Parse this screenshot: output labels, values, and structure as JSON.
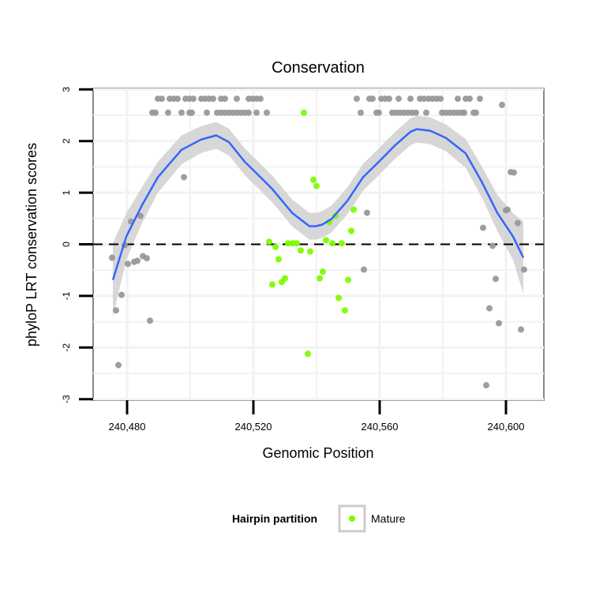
{
  "chart_data": {
    "type": "scatter",
    "title": "Conservation",
    "xlabel": "Genomic Position",
    "ylabel": "phyloP LRT conservation scores",
    "xlim": [
      240469.25,
      240612
    ],
    "ylim": [
      -3.02,
      3.02
    ],
    "x_ticks": [
      240480,
      240520,
      240560,
      240600
    ],
    "x_tick_labels": [
      "240,480",
      "240,520",
      "240,560",
      "240,600"
    ],
    "y_ticks": [
      -3,
      -2,
      -1,
      0,
      1,
      2,
      3
    ],
    "y_tick_labels": [
      "-3",
      "-2",
      "-1",
      "0",
      "1",
      "2",
      "3"
    ],
    "grid": true,
    "reference_line": {
      "y": 0,
      "style": "dashed",
      "color": "#000000"
    },
    "legend": {
      "title": "Hairpin partition",
      "placement": "bottom",
      "entries": [
        {
          "label": "Mature",
          "color": "#7CFC00"
        }
      ]
    },
    "colors": {
      "other": "#999999",
      "mature": "#7CFC00",
      "smooth": "#3366FF",
      "ci_band": "#D3D3D3"
    },
    "series": [
      {
        "name": "Other",
        "color": "#999999",
        "points": [
          [
            240475.25,
            -0.26
          ],
          [
            240476.5,
            -1.28
          ],
          [
            240477.25,
            -2.34
          ],
          [
            240478.25,
            -0.98
          ],
          [
            240479.25,
            -0.02
          ],
          [
            240480.25,
            -0.38
          ],
          [
            240481.25,
            0.44
          ],
          [
            240482.25,
            -0.34
          ],
          [
            240483.25,
            -0.32
          ],
          [
            240484.25,
            0.55
          ],
          [
            240485,
            -0.23
          ],
          [
            240486.25,
            -0.27
          ],
          [
            240487.25,
            -1.48
          ],
          [
            240498,
            1.3
          ],
          [
            240555,
            -0.49
          ],
          [
            240556,
            0.61
          ],
          [
            240592.75,
            0.32
          ],
          [
            240595.75,
            -0.03
          ],
          [
            240596.75,
            -0.67
          ],
          [
            240594.75,
            -1.24
          ],
          [
            240597.75,
            -1.53
          ],
          [
            240593.75,
            -2.73
          ],
          [
            240598.75,
            2.7
          ],
          [
            240601.5,
            1.4
          ],
          [
            240602.5,
            1.39
          ],
          [
            240600,
            0.66
          ],
          [
            240600.5,
            0.67
          ],
          [
            240603.75,
            0.41
          ],
          [
            240605.75,
            -0.49
          ],
          [
            240604.75,
            -1.65
          ],
          [
            240489.75,
            2.82
          ],
          [
            240491,
            2.82
          ],
          [
            240493.5,
            2.82
          ],
          [
            240494.75,
            2.82
          ],
          [
            240496,
            2.82
          ],
          [
            240498.5,
            2.82
          ],
          [
            240499.75,
            2.82
          ],
          [
            240501,
            2.82
          ],
          [
            240503.5,
            2.82
          ],
          [
            240504.75,
            2.82
          ],
          [
            240506,
            2.82
          ],
          [
            240507.25,
            2.82
          ],
          [
            240509.75,
            2.82
          ],
          [
            240511,
            2.82
          ],
          [
            240514.75,
            2.82
          ],
          [
            240518.5,
            2.82
          ],
          [
            240519.75,
            2.82
          ],
          [
            240521,
            2.82
          ],
          [
            240522.25,
            2.82
          ],
          [
            240552.75,
            2.82
          ],
          [
            240556.75,
            2.82
          ],
          [
            240557.75,
            2.82
          ],
          [
            240560.5,
            2.82
          ],
          [
            240561.75,
            2.82
          ],
          [
            240563,
            2.82
          ],
          [
            240566,
            2.82
          ],
          [
            240569.75,
            2.82
          ],
          [
            240572.75,
            2.82
          ],
          [
            240574,
            2.82
          ],
          [
            240575.5,
            2.82
          ],
          [
            240576.75,
            2.82
          ],
          [
            240578,
            2.82
          ],
          [
            240579.25,
            2.82
          ],
          [
            240584.75,
            2.82
          ],
          [
            240587.25,
            2.82
          ],
          [
            240588.5,
            2.82
          ],
          [
            240591.75,
            2.82
          ],
          [
            240488,
            2.55
          ],
          [
            240489,
            2.55
          ],
          [
            240493,
            2.55
          ],
          [
            240497.25,
            2.55
          ],
          [
            240499.75,
            2.55
          ],
          [
            240500.5,
            2.55
          ],
          [
            240505.25,
            2.55
          ],
          [
            240508.5,
            2.55
          ],
          [
            240509.75,
            2.55
          ],
          [
            240511,
            2.55
          ],
          [
            240512.25,
            2.55
          ],
          [
            240513.5,
            2.55
          ],
          [
            240514.75,
            2.55
          ],
          [
            240516,
            2.55
          ],
          [
            240517.25,
            2.55
          ],
          [
            240518.5,
            2.55
          ],
          [
            240521,
            2.55
          ],
          [
            240524.25,
            2.55
          ],
          [
            240554,
            2.55
          ],
          [
            240559,
            2.55
          ],
          [
            240559.75,
            2.55
          ],
          [
            240564,
            2.55
          ],
          [
            240565.25,
            2.55
          ],
          [
            240566.5,
            2.55
          ],
          [
            240567.75,
            2.55
          ],
          [
            240569,
            2.55
          ],
          [
            240570.25,
            2.55
          ],
          [
            240571.5,
            2.55
          ],
          [
            240574.75,
            2.55
          ],
          [
            240579.75,
            2.55
          ],
          [
            240581,
            2.55
          ],
          [
            240582.25,
            2.55
          ],
          [
            240583.5,
            2.55
          ],
          [
            240584.75,
            2.55
          ],
          [
            240586,
            2.55
          ],
          [
            240586.75,
            2.55
          ],
          [
            240589.75,
            2.55
          ],
          [
            240590.5,
            2.55
          ]
        ]
      },
      {
        "name": "Mature",
        "color": "#7CFC00",
        "points": [
          [
            240525,
            0.05
          ],
          [
            240527,
            -0.05
          ],
          [
            240528,
            -0.29
          ],
          [
            240526,
            -0.78
          ],
          [
            240529,
            -0.73
          ],
          [
            240530,
            -0.66
          ],
          [
            240531,
            0.02
          ],
          [
            240532.5,
            0.02
          ],
          [
            240533.75,
            0.02
          ],
          [
            240535,
            -0.12
          ],
          [
            240538,
            -0.14
          ],
          [
            240536,
            2.55
          ],
          [
            240539,
            1.25
          ],
          [
            240540,
            1.13
          ],
          [
            240537.25,
            -2.12
          ],
          [
            240551.75,
            0.67
          ],
          [
            240546,
            0.55
          ],
          [
            240544,
            0.43
          ],
          [
            240551,
            0.26
          ],
          [
            240543,
            0.08
          ],
          [
            240545,
            0.02
          ],
          [
            240548,
            0.02
          ],
          [
            240542,
            -0.53
          ],
          [
            240541,
            -0.66
          ],
          [
            240550,
            -0.69
          ],
          [
            240547,
            -1.04
          ],
          [
            240549,
            -1.28
          ]
        ]
      }
    ],
    "smooth": {
      "x": [
        240475.5,
        240479.75,
        240484.75,
        240489.75,
        240497.25,
        240503.5,
        240508.25,
        240512.25,
        240517.25,
        240522.25,
        240526,
        240532.25,
        240537.75,
        240539.75,
        240541.75,
        240544.75,
        240549.75,
        240554.75,
        240559.75,
        240564.75,
        240569.75,
        240571.75,
        240576,
        240581,
        240587.25,
        240592.25,
        240597.25,
        240602.25,
        240605.5
      ],
      "y": [
        -0.69,
        0.15,
        0.76,
        1.3,
        1.83,
        2.03,
        2.11,
        1.98,
        1.6,
        1.3,
        1.07,
        0.61,
        0.35,
        0.35,
        0.38,
        0.49,
        0.84,
        1.3,
        1.6,
        1.91,
        2.18,
        2.23,
        2.2,
        2.06,
        1.76,
        1.22,
        0.61,
        0.15,
        -0.26
      ],
      "ci_halfwidth": [
        0.72,
        0.45,
        0.35,
        0.3,
        0.28,
        0.26,
        0.26,
        0.26,
        0.26,
        0.26,
        0.26,
        0.26,
        0.26,
        0.26,
        0.26,
        0.26,
        0.26,
        0.26,
        0.26,
        0.26,
        0.26,
        0.26,
        0.26,
        0.26,
        0.28,
        0.3,
        0.35,
        0.45,
        0.7
      ]
    }
  }
}
